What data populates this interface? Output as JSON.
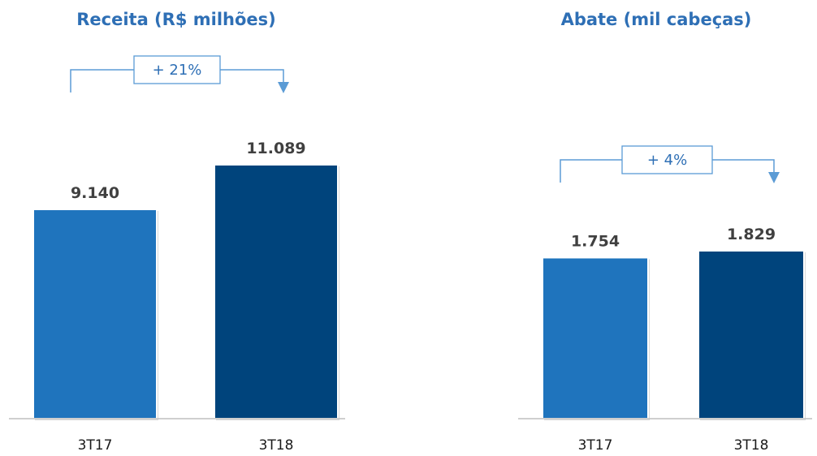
{
  "colors": {
    "title": "#2e6fb5",
    "bar_prior": "#1f74bd",
    "bar_current": "#00447c",
    "bracket": "#5b9bd5",
    "axis": "#bfbfbf",
    "data_label": "#404040"
  },
  "chart_data": [
    {
      "type": "bar",
      "title": "Receita (R$ milhões)",
      "categories": [
        "3T17",
        "3T18"
      ],
      "values": [
        9140,
        11089
      ],
      "data_labels": [
        "9.140",
        "11.089"
      ],
      "growth_label": "+ 21%",
      "xlabel": "",
      "ylabel": "",
      "ylim": [
        0,
        12900
      ],
      "grid": false,
      "legend": "none"
    },
    {
      "type": "bar",
      "title": "Abate (mil cabeças)",
      "categories": [
        "3T17",
        "3T18"
      ],
      "values": [
        1754,
        1829
      ],
      "data_labels": [
        "1.754",
        "1.829"
      ],
      "growth_label": "+ 4%",
      "xlabel": "",
      "ylabel": "",
      "ylim": [
        0,
        2630
      ],
      "grid": false,
      "legend": "none"
    }
  ]
}
